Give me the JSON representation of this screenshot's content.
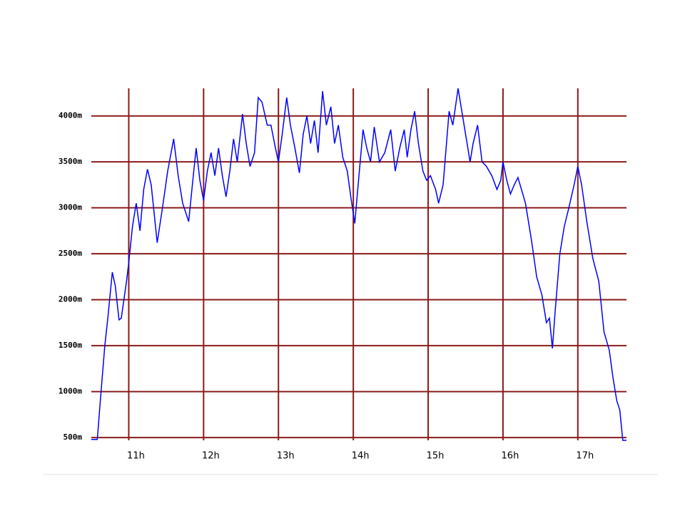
{
  "chart_data": {
    "type": "line",
    "color": "#0000ff",
    "grid": true,
    "grid_color": "#8b1a1a",
    "xlim": [
      10.5,
      17.65
    ],
    "ylim": [
      470,
      4300
    ],
    "xticks": [
      {
        "value": 11,
        "label": "11h"
      },
      {
        "value": 12,
        "label": "12h"
      },
      {
        "value": 13,
        "label": "13h"
      },
      {
        "value": 14,
        "label": "14h"
      },
      {
        "value": 15,
        "label": "15h"
      },
      {
        "value": 16,
        "label": "16h"
      },
      {
        "value": 17,
        "label": "17h"
      }
    ],
    "yticks": [
      {
        "value": 500,
        "label": "500m"
      },
      {
        "value": 1000,
        "label": "1000m"
      },
      {
        "value": 1500,
        "label": "1500m"
      },
      {
        "value": 2000,
        "label": "2000m"
      },
      {
        "value": 2500,
        "label": "2500m"
      },
      {
        "value": 3000,
        "label": "3000m"
      },
      {
        "value": 3500,
        "label": "3500m"
      },
      {
        "value": 4000,
        "label": "4000m"
      }
    ],
    "x": [
      10.5,
      10.58,
      10.62,
      10.68,
      10.72,
      10.78,
      10.82,
      10.87,
      10.9,
      10.97,
      11.0,
      11.05,
      11.1,
      11.15,
      11.2,
      11.25,
      11.3,
      11.38,
      11.45,
      11.52,
      11.6,
      11.66,
      11.72,
      11.8,
      11.85,
      11.9,
      11.95,
      12.0,
      12.05,
      12.1,
      12.15,
      12.2,
      12.25,
      12.3,
      12.35,
      12.4,
      12.45,
      12.52,
      12.57,
      12.62,
      12.68,
      12.73,
      12.78,
      12.85,
      12.9,
      12.96,
      13.0,
      13.05,
      13.11,
      13.16,
      13.22,
      13.28,
      13.33,
      13.38,
      13.43,
      13.48,
      13.53,
      13.59,
      13.64,
      13.7,
      13.75,
      13.8,
      13.86,
      13.92,
      13.97,
      14.02,
      14.07,
      14.13,
      14.18,
      14.23,
      14.28,
      14.35,
      14.42,
      14.5,
      14.56,
      14.62,
      14.68,
      14.72,
      14.77,
      14.82,
      14.87,
      14.93,
      14.98,
      15.03,
      15.1,
      15.14,
      15.2,
      15.28,
      15.33,
      15.4,
      15.46,
      15.52,
      15.56,
      15.6,
      15.66,
      15.72,
      15.78,
      15.85,
      15.92,
      15.97,
      16.0,
      16.05,
      16.1,
      16.15,
      16.2,
      16.3,
      16.38,
      16.45,
      16.52,
      16.58,
      16.62,
      16.66,
      16.7,
      16.76,
      16.82,
      16.88,
      16.95,
      17.0,
      17.05,
      17.12,
      17.2,
      17.28,
      17.35,
      17.42,
      17.47,
      17.52,
      17.56,
      17.6,
      17.65
    ],
    "values": [
      480,
      480,
      900,
      1500,
      1800,
      2300,
      2150,
      1780,
      1800,
      2200,
      2400,
      2800,
      3050,
      2750,
      3200,
      3420,
      3250,
      2620,
      3000,
      3400,
      3750,
      3350,
      3050,
      2850,
      3250,
      3650,
      3300,
      3080,
      3400,
      3600,
      3350,
      3650,
      3350,
      3120,
      3400,
      3750,
      3500,
      4020,
      3700,
      3450,
      3600,
      4200,
      4150,
      3900,
      3900,
      3650,
      3500,
      3800,
      4200,
      3900,
      3650,
      3380,
      3800,
      4000,
      3700,
      3950,
      3600,
      4270,
      3900,
      4100,
      3700,
      3900,
      3550,
      3400,
      3100,
      2830,
      3300,
      3850,
      3650,
      3500,
      3880,
      3500,
      3600,
      3850,
      3400,
      3650,
      3850,
      3550,
      3850,
      4050,
      3700,
      3400,
      3300,
      3350,
      3200,
      3050,
      3250,
      4050,
      3900,
      4300,
      4000,
      3700,
      3500,
      3700,
      3900,
      3500,
      3450,
      3350,
      3200,
      3300,
      3500,
      3300,
      3150,
      3250,
      3330,
      3050,
      2650,
      2250,
      2050,
      1750,
      1800,
      1470,
      1900,
      2500,
      2800,
      3000,
      3250,
      3450,
      3250,
      2850,
      2450,
      2200,
      1650,
      1450,
      1150,
      900,
      800,
      470,
      470
    ]
  }
}
